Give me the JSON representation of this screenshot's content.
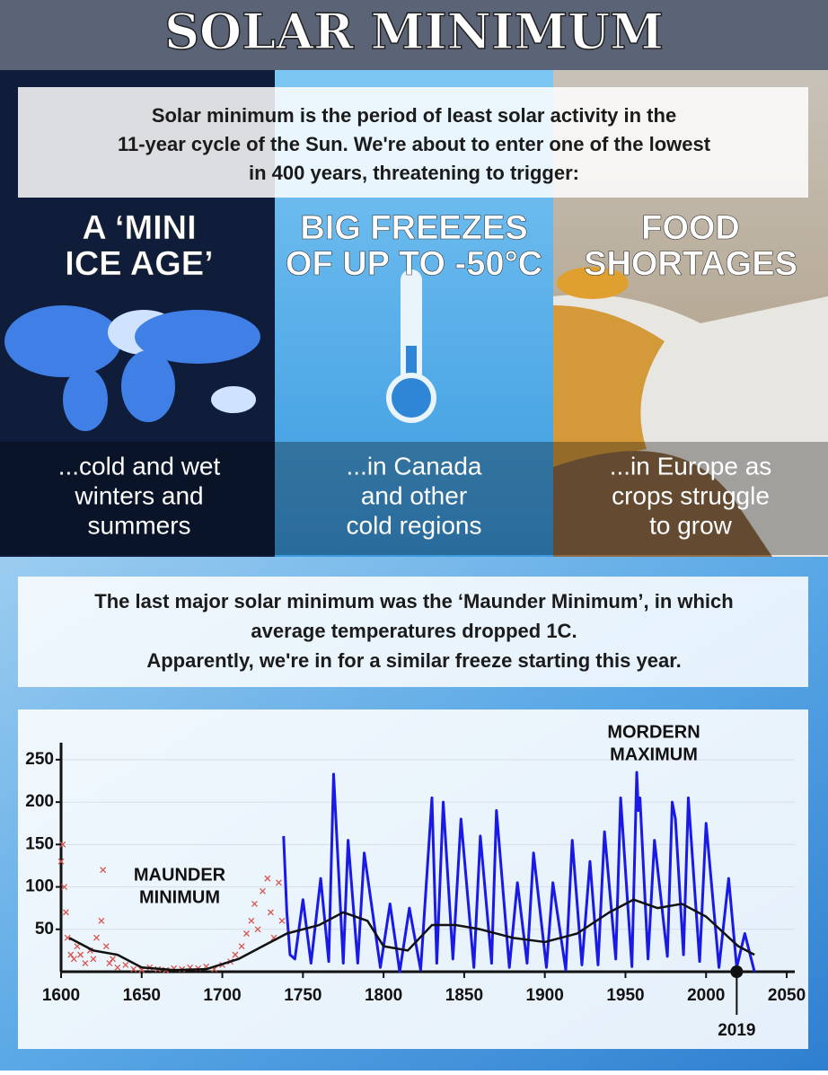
{
  "header": {
    "title": "SOLAR MINIMUM"
  },
  "intro": [
    "Solar minimum is the period of least solar activity in the",
    "11-year cycle of the Sun. We're about to enter one of the lowest",
    "in 400 years, threatening to trigger:"
  ],
  "panels": [
    {
      "title": [
        "A ‘MINI",
        "ICE AGE’"
      ],
      "caption": [
        "...cold and wet",
        "winters and",
        "summers"
      ]
    },
    {
      "title": [
        "BIG FREEZES",
        "OF UP TO -50°C"
      ],
      "caption": [
        "...in Canada",
        "and other",
        "cold regions"
      ]
    },
    {
      "title": [
        "FOOD",
        "SHORTAGES"
      ],
      "caption": [
        "...in Europe as",
        "crops struggle",
        "to grow"
      ]
    }
  ],
  "maunder_text": [
    "The last major solar minimum was the ‘Maunder Minimum’, in which",
    "average temperatures dropped 1C.",
    "Apparently, we're in for a similar freeze starting this year."
  ],
  "chart_data": {
    "type": "line",
    "xlim": [
      1600,
      2055
    ],
    "xticks": [
      1600,
      1650,
      1700,
      1750,
      1800,
      1850,
      1900,
      1950,
      2000,
      2050
    ],
    "ylim": [
      0,
      270
    ],
    "yticks": [
      50,
      100,
      150,
      200,
      250
    ],
    "grid": true,
    "annotations": [
      [
        "MAUNDER",
        "MINIMUM"
      ],
      [
        "MORDERN",
        "MAXIMUM"
      ]
    ],
    "marker_year": 2019,
    "series": [
      {
        "color": "#1a1ae6",
        "mode": "line",
        "x": [
          1738,
          1740,
          1742,
          1745,
          1750,
          1755,
          1761,
          1766,
          1769,
          1775,
          1778,
          1784,
          1788,
          1798,
          1804,
          1810,
          1816,
          1823,
          1830,
          1833,
          1837,
          1843,
          1848,
          1856,
          1860,
          1867,
          1870,
          1878,
          1883,
          1889,
          1893,
          1901,
          1905,
          1913,
          1917,
          1923,
          1928,
          1933,
          1937,
          1944,
          1947,
          1954,
          1957,
          1958,
          1959,
          1964,
          1968,
          1976,
          1979,
          1981,
          1986,
          1989,
          1996,
          2000,
          2008,
          2014,
          2019,
          2024,
          2030
        ],
        "values": [
          160,
          70,
          20,
          15,
          85,
          10,
          110,
          12,
          233,
          10,
          155,
          10,
          140,
          5,
          80,
          0,
          75,
          2,
          205,
          10,
          200,
          15,
          180,
          5,
          160,
          10,
          190,
          5,
          105,
          10,
          140,
          5,
          105,
          2,
          155,
          8,
          130,
          8,
          165,
          15,
          205,
          6,
          235,
          190,
          205,
          15,
          155,
          18,
          200,
          180,
          20,
          205,
          12,
          175,
          5,
          110,
          5,
          45,
          0
        ]
      },
      {
        "color": "#111111",
        "mode": "line",
        "x": [
          1605,
          1620,
          1635,
          1650,
          1670,
          1690,
          1710,
          1725,
          1740,
          1760,
          1775,
          1790,
          1800,
          1815,
          1830,
          1845,
          1860,
          1880,
          1900,
          1920,
          1940,
          1955,
          1970,
          1985,
          2000,
          2020,
          2030
        ],
        "values": [
          40,
          25,
          20,
          5,
          2,
          3,
          15,
          30,
          45,
          55,
          70,
          60,
          30,
          25,
          55,
          55,
          50,
          40,
          35,
          45,
          70,
          85,
          75,
          80,
          65,
          30,
          20
        ]
      },
      {
        "color": "#d9534f",
        "mode": "markers",
        "x": [
          1600,
          1601,
          1602,
          1603,
          1604,
          1606,
          1608,
          1610,
          1612,
          1615,
          1618,
          1620,
          1622,
          1625,
          1626,
          1628,
          1630,
          1632,
          1635,
          1640,
          1645,
          1650,
          1655,
          1660,
          1665,
          1670,
          1675,
          1680,
          1685,
          1690,
          1695,
          1700,
          1705,
          1708,
          1712,
          1715,
          1718,
          1720,
          1722,
          1725,
          1728,
          1730,
          1732,
          1735,
          1737
        ],
        "values": [
          130,
          150,
          100,
          70,
          40,
          20,
          15,
          30,
          20,
          10,
          25,
          15,
          40,
          60,
          120,
          30,
          10,
          15,
          5,
          8,
          3,
          2,
          5,
          3,
          2,
          4,
          3,
          5,
          4,
          6,
          3,
          8,
          12,
          20,
          30,
          45,
          60,
          80,
          50,
          95,
          110,
          70,
          40,
          105,
          60
        ]
      }
    ]
  }
}
